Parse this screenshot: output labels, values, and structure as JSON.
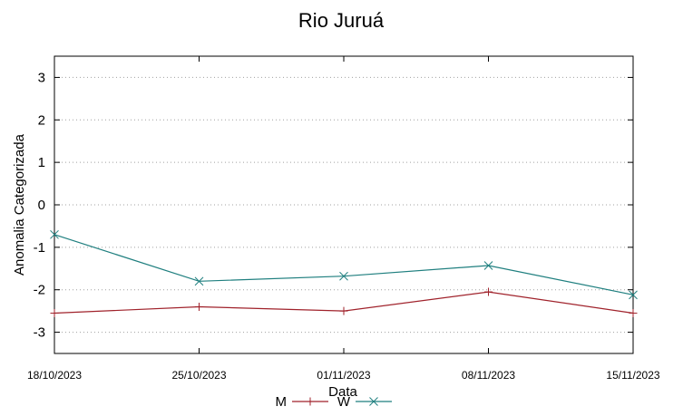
{
  "chart_data": {
    "type": "line",
    "title": "Rio Juruá",
    "xlabel": "Data",
    "ylabel": "Anomalia Categorizada",
    "categories": [
      "18/10/2023",
      "25/10/2023",
      "01/11/2023",
      "08/11/2023",
      "15/11/2023"
    ],
    "ylim": [
      -3.5,
      3.5
    ],
    "yticks": [
      3,
      2,
      1,
      0,
      -1,
      -2,
      -3
    ],
    "grid": true,
    "legend_position": "bottom-center",
    "series": [
      {
        "name": "M",
        "color": "#a0222b",
        "marker": "plus",
        "values": [
          -2.55,
          -2.4,
          -2.5,
          -2.05,
          -2.55
        ]
      },
      {
        "name": "W",
        "color": "#1f7f7f",
        "marker": "x",
        "values": [
          -0.7,
          -1.8,
          -1.68,
          -1.43,
          -2.12
        ]
      }
    ]
  }
}
